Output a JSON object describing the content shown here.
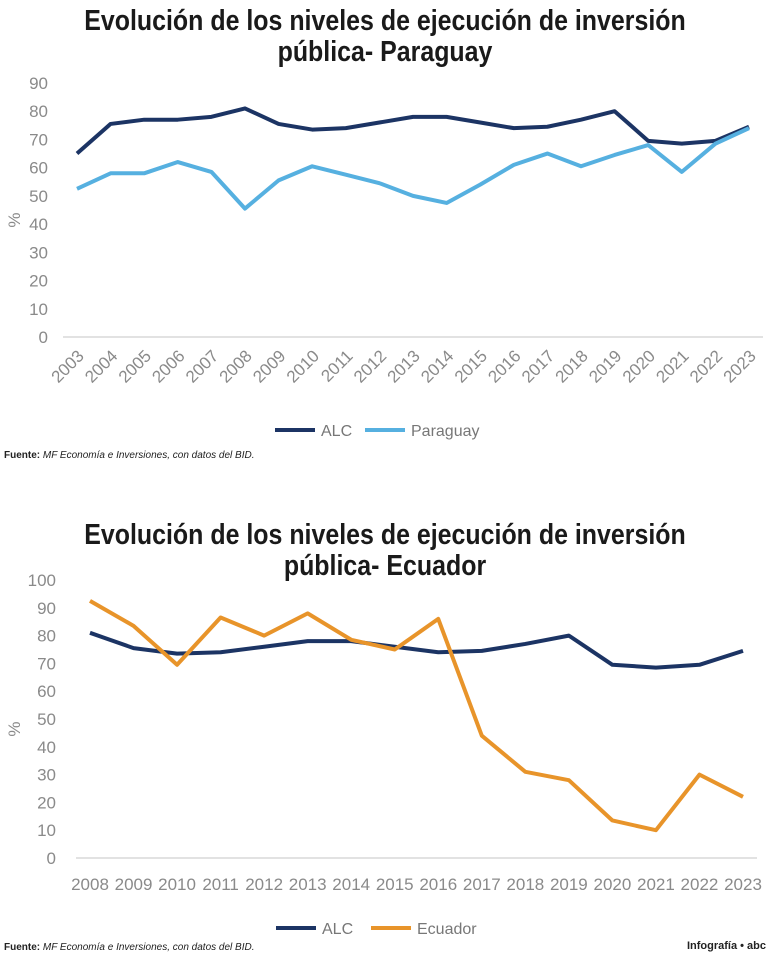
{
  "chart_data": [
    {
      "type": "line",
      "title": "Evolución de los niveles de ejecución de inversión pública- Paraguay",
      "ylabel": "%",
      "ylim": [
        0,
        90
      ],
      "yticks": [
        "0",
        "10",
        "20",
        "30",
        "40",
        "50",
        "60",
        "70",
        "80",
        "90"
      ],
      "categories": [
        "2003",
        "2004",
        "2005",
        "2006",
        "2007",
        "2008",
        "2009",
        "2010",
        "2011",
        "2012",
        "2013",
        "2014",
        "2015",
        "2016",
        "2017",
        "2018",
        "2019",
        "2020",
        "2021",
        "2022",
        "2023"
      ],
      "series": [
        {
          "name": "ALC",
          "color": "#1c3464",
          "values": [
            65,
            75.5,
            77,
            77,
            78,
            81,
            75.5,
            73.5,
            74,
            76,
            78,
            78,
            76,
            74,
            74.5,
            77,
            80,
            69.5,
            68.5,
            69.5,
            74.5
          ]
        },
        {
          "name": "Paraguay",
          "color": "#56b0e0",
          "values": [
            52.5,
            58,
            58,
            62,
            58.5,
            45.5,
            55.5,
            60.5,
            57.5,
            54.5,
            50,
            47.5,
            54,
            61,
            65,
            60.5,
            64.5,
            68,
            58.5,
            68.5,
            74
          ]
        }
      ],
      "legend": "bottom",
      "source_label": "Fuente:",
      "source": "MF Economía e Inversiones, con datos del BID."
    },
    {
      "type": "line",
      "title": "Evolución de los niveles de ejecución de inversión pública- Ecuador",
      "ylabel": "%",
      "ylim": [
        0,
        100
      ],
      "yticks": [
        "0",
        "10",
        "20",
        "30",
        "40",
        "50",
        "60",
        "70",
        "80",
        "90",
        "100"
      ],
      "categories": [
        "2008",
        "2009",
        "2010",
        "2011",
        "2012",
        "2013",
        "2014",
        "2015",
        "2016",
        "2017",
        "2018",
        "2019",
        "2020",
        "2021",
        "2022",
        "2023"
      ],
      "series": [
        {
          "name": "ALC",
          "color": "#1c3464",
          "values": [
            81,
            75.5,
            73.5,
            74,
            76,
            78,
            78,
            76,
            74,
            74.5,
            77,
            80,
            69.5,
            68.5,
            69.5,
            74.5
          ]
        },
        {
          "name": "Ecuador",
          "color": "#e8942a",
          "values": [
            92.5,
            83.5,
            69.5,
            86.5,
            80,
            88,
            78.5,
            75,
            86,
            44,
            31,
            28,
            13.5,
            10,
            30,
            22
          ]
        }
      ],
      "legend": "bottom",
      "source_label": "Fuente:",
      "source": "MF Economía e Inversiones, con datos del BID."
    }
  ],
  "credit": "Infografía • abc"
}
